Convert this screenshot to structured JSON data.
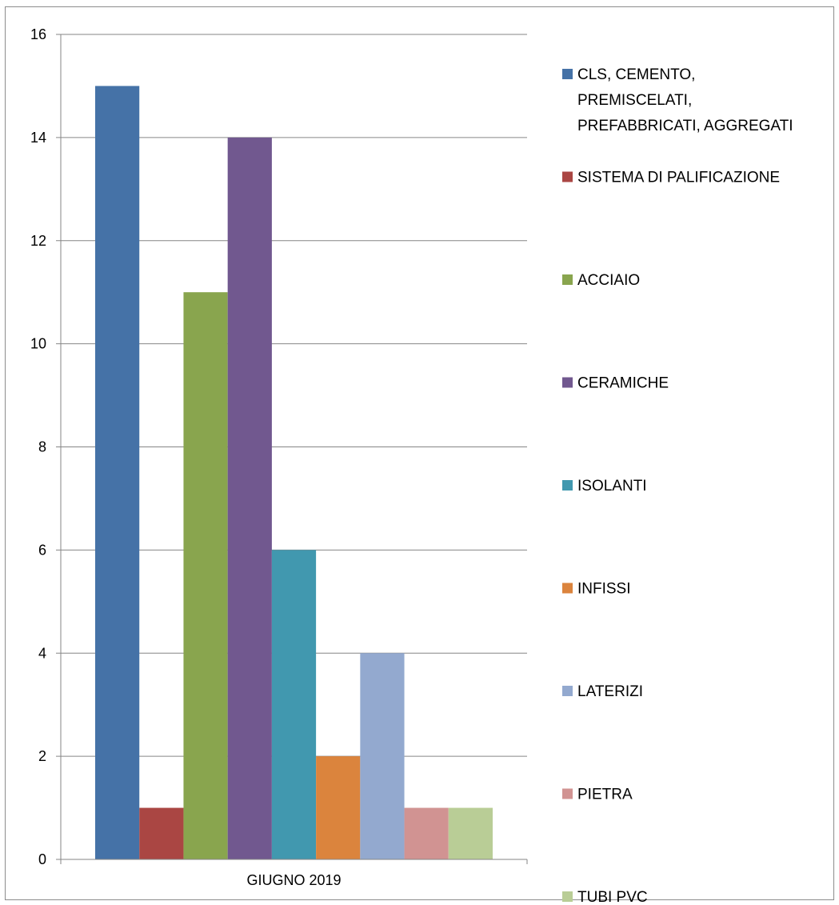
{
  "chart_data": {
    "type": "bar",
    "categories": [
      "GIUGNO 2019"
    ],
    "series": [
      {
        "name": "CLS, CEMENTO, PREMISCELATI, PREFABBRICATI, AGGREGATI",
        "legend_lines": [
          "CLS, CEMENTO,",
          "PREMISCELATI,",
          "PREFABBRICATI, AGGREGATI"
        ],
        "values": [
          15
        ],
        "color": "#4572A7"
      },
      {
        "name": "SISTEMA DI PALIFICAZIONE",
        "legend_lines": [
          "SISTEMA DI PALIFICAZIONE"
        ],
        "values": [
          1
        ],
        "color": "#AA4643"
      },
      {
        "name": "ACCIAIO",
        "legend_lines": [
          "ACCIAIO"
        ],
        "values": [
          11
        ],
        "color": "#89A54E"
      },
      {
        "name": "CERAMICHE",
        "legend_lines": [
          "CERAMICHE"
        ],
        "values": [
          14
        ],
        "color": "#71588F"
      },
      {
        "name": "ISOLANTI",
        "legend_lines": [
          "ISOLANTI"
        ],
        "values": [
          6
        ],
        "color": "#4198AF"
      },
      {
        "name": "INFISSI",
        "legend_lines": [
          "INFISSI"
        ],
        "values": [
          2
        ],
        "color": "#DB843D"
      },
      {
        "name": "LATERIZI",
        "legend_lines": [
          "LATERIZI"
        ],
        "values": [
          4
        ],
        "color": "#93A9CF"
      },
      {
        "name": "PIETRA",
        "legend_lines": [
          "PIETRA"
        ],
        "values": [
          1
        ],
        "color": "#D19392"
      },
      {
        "name": "TUBI PVC",
        "legend_lines": [
          "TUBI PVC"
        ],
        "values": [
          1
        ],
        "color": "#B9CD96"
      }
    ],
    "yticks": [
      "0",
      "2",
      "4",
      "6",
      "8",
      "10",
      "12",
      "14",
      "16"
    ],
    "ylim": [
      0,
      16
    ],
    "title": "",
    "xlabel": "",
    "ylabel": "",
    "grid": true,
    "legend_position": "right"
  }
}
